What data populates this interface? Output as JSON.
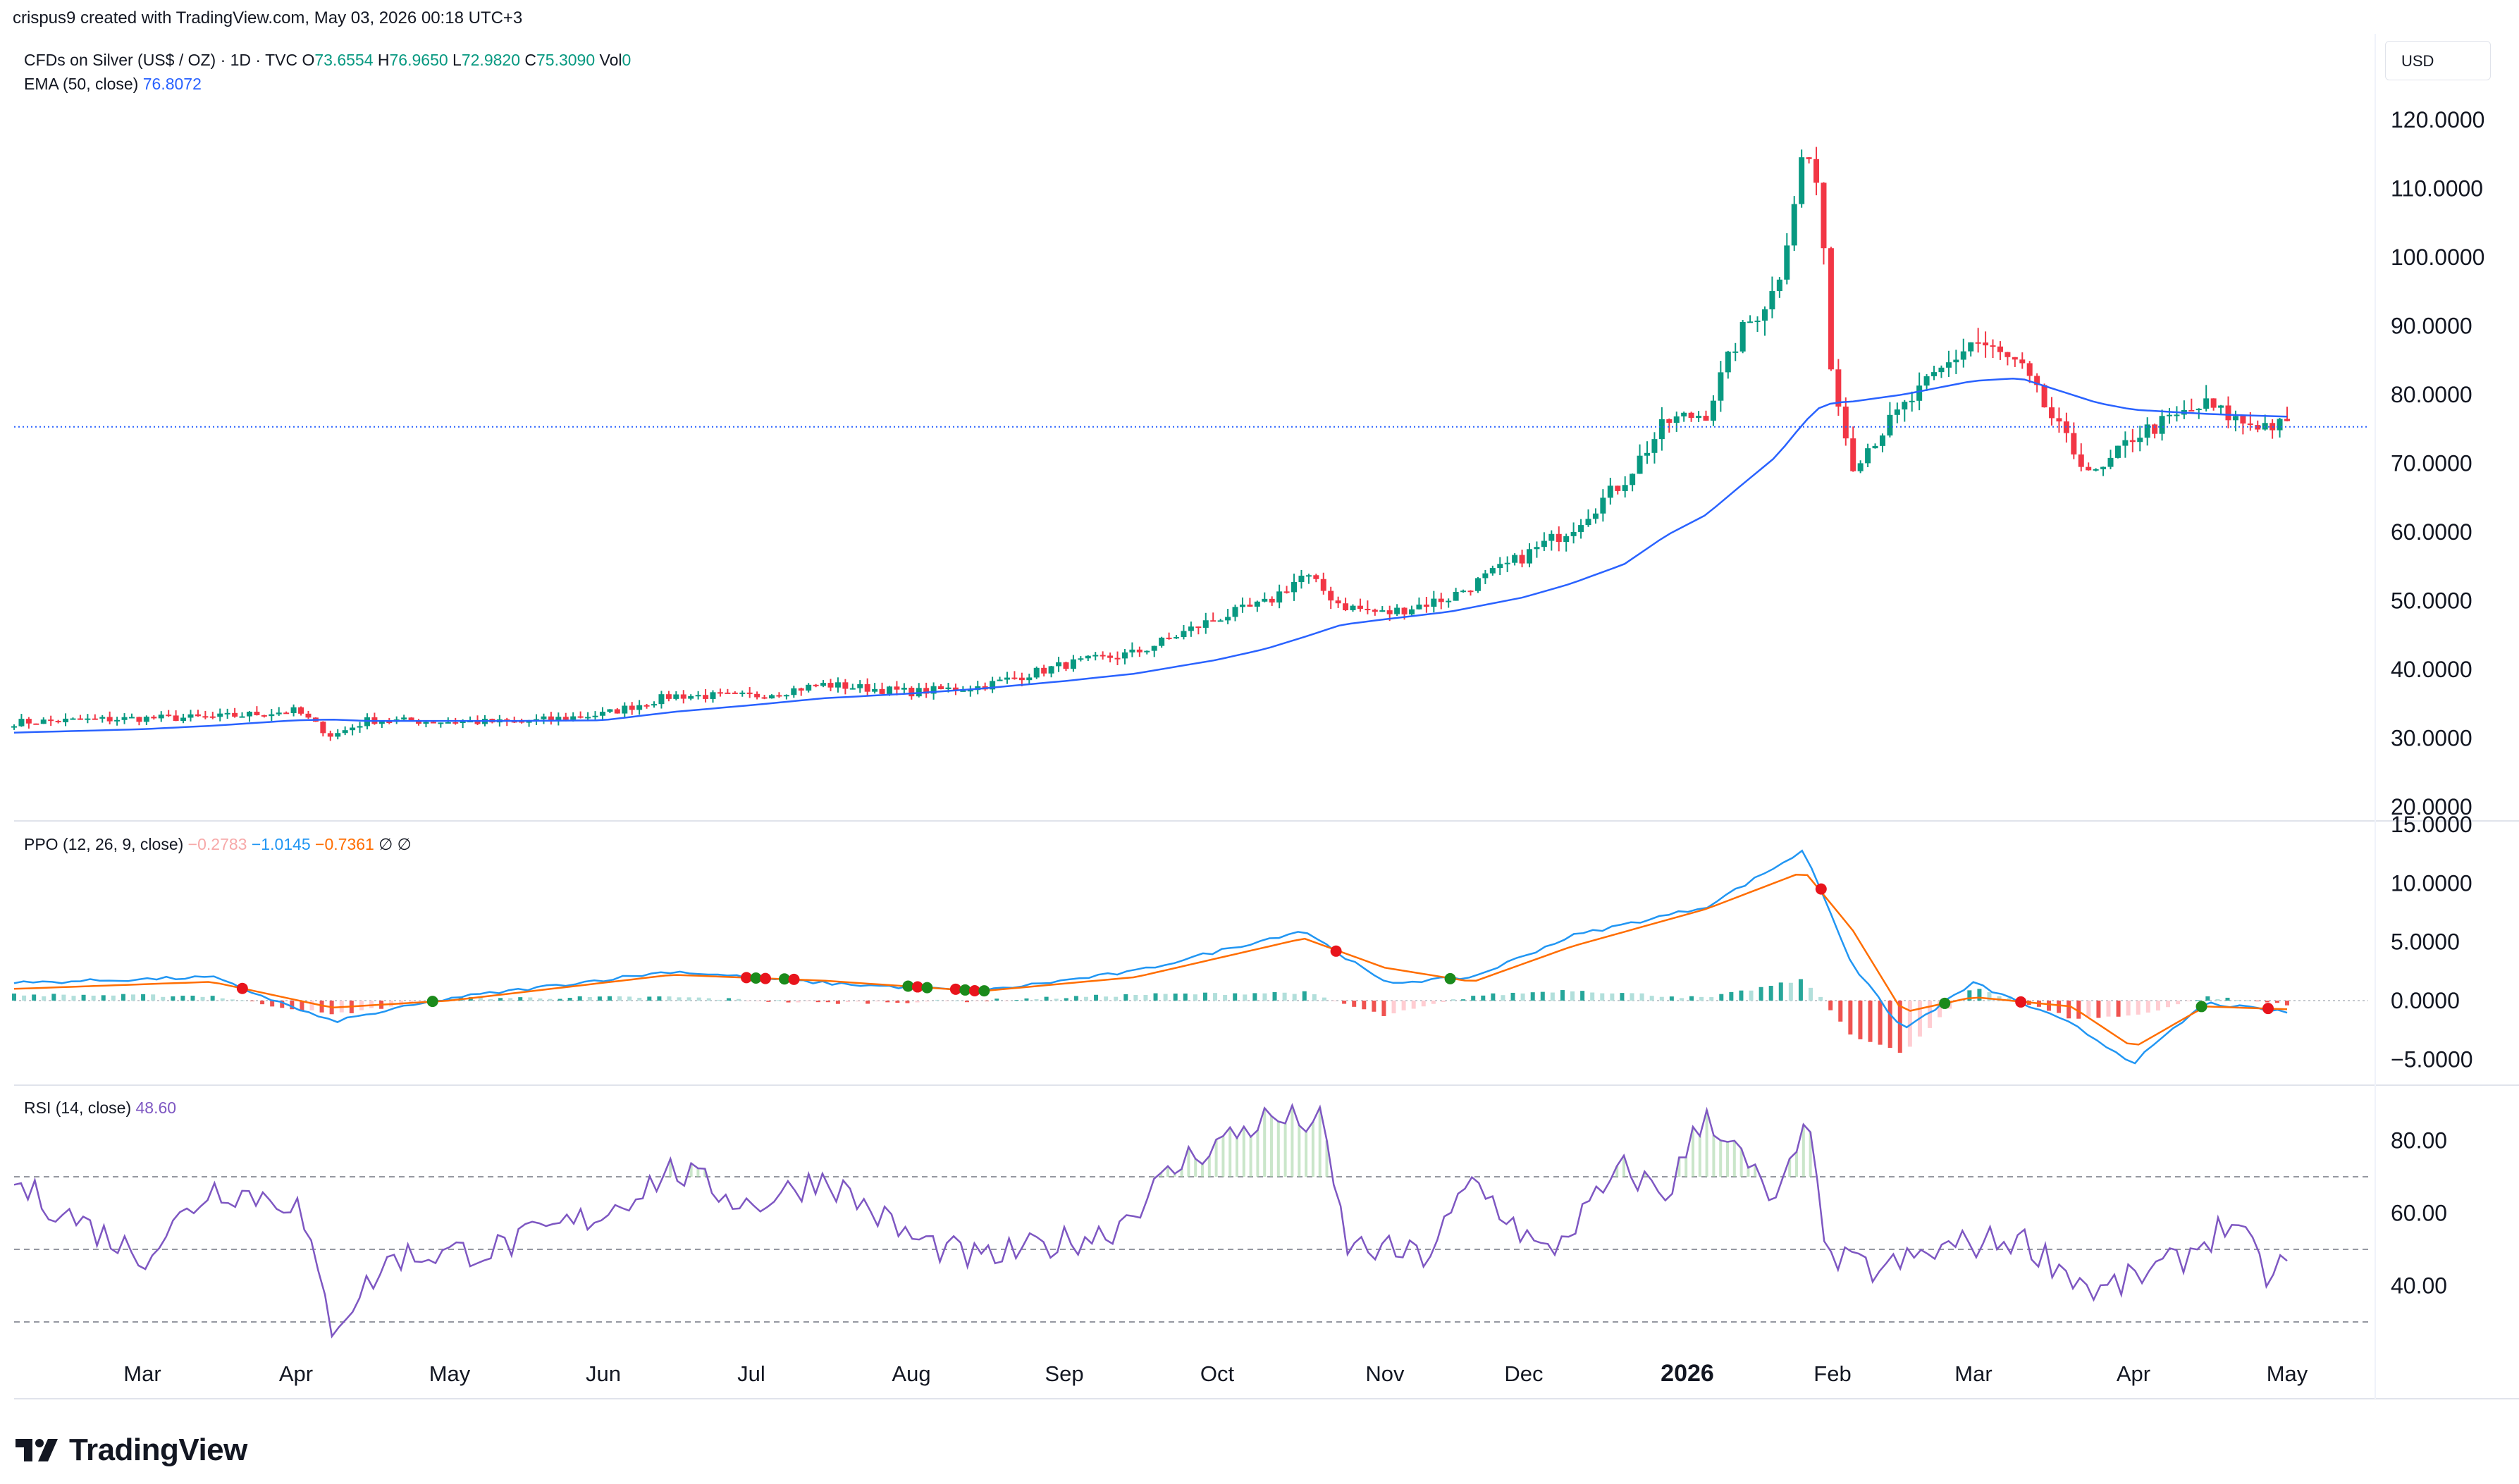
{
  "header": {
    "credit": "crispus9 created with TradingView.com, May 03, 2026 00:18 UTC+3"
  },
  "price_pane": {
    "symbol": "CFDs on Silver (US$ / OZ) · 1D · TVC",
    "o_label": "O",
    "o_value": "73.6554",
    "h_label": "H",
    "h_value": "76.9650",
    "l_label": "L",
    "l_value": "72.9820",
    "c_label": "C",
    "c_value": "75.3090",
    "vol_label": "Vol",
    "vol_value": "0",
    "ema_label": "EMA (50, close)",
    "ema_value": "76.8072",
    "currency": "USD",
    "y_ticks": [
      "120.0000",
      "110.0000",
      "100.0000",
      "90.0000",
      "80.0000",
      "70.0000",
      "60.0000",
      "50.0000",
      "40.0000",
      "30.0000",
      "20.0000"
    ]
  },
  "ppo_pane": {
    "label": "PPO (12, 26, 9, close)",
    "hist_value": "−0.2783",
    "ppo_value": "−1.0145",
    "signal_value": "−0.7361",
    "extra1": "∅",
    "extra2": "∅",
    "y_ticks": [
      "15.0000",
      "10.0000",
      "5.0000",
      "0.0000",
      "−5.0000"
    ]
  },
  "rsi_pane": {
    "label": "RSI (14, close)",
    "value": "48.60",
    "y_ticks": [
      "80.00",
      "60.00",
      "40.00"
    ]
  },
  "x_axis": {
    "labels": [
      "Mar",
      "Apr",
      "May",
      "Jun",
      "Jul",
      "Aug",
      "Sep",
      "Oct",
      "Nov",
      "Dec",
      "2026",
      "Feb",
      "Mar",
      "Apr",
      "May"
    ]
  },
  "footer": {
    "brand": "TradingView"
  },
  "colors": {
    "up": "#089981",
    "down": "#f23645",
    "ema": "#2962ff",
    "ppo_line": "#2196f3",
    "signal_line": "#ff6d00",
    "rsi_line": "#7e57c2",
    "hist_up": "#26a69a",
    "hist_down": "#ef5350",
    "hist_up_light": "#b2dfdb",
    "hist_down_light": "#ffcdd2"
  },
  "chart_data": [
    {
      "type": "line",
      "name_hint": "price",
      "title": "CFDs on Silver (US$ / OZ) · 1D · TVC",
      "x": [
        "2025-02-14",
        "2025-03-01",
        "2025-03-15",
        "2025-04-01",
        "2025-04-08",
        "2025-04-15",
        "2025-05-01",
        "2025-05-15",
        "2025-06-01",
        "2025-06-15",
        "2025-07-01",
        "2025-07-15",
        "2025-08-01",
        "2025-08-15",
        "2025-09-01",
        "2025-09-15",
        "2025-10-01",
        "2025-10-10",
        "2025-10-17",
        "2025-10-24",
        "2025-11-01",
        "2025-11-15",
        "2025-12-01",
        "2025-12-10",
        "2025-12-20",
        "2025-12-28",
        "2026-01-05",
        "2026-01-12",
        "2026-01-20",
        "2026-01-26",
        "2026-01-29",
        "2026-02-01",
        "2026-02-05",
        "2026-02-15",
        "2026-03-01",
        "2026-03-10",
        "2026-03-20",
        "2026-03-25",
        "2026-04-01",
        "2026-04-15",
        "2026-04-22",
        "2026-05-01"
      ],
      "close": [
        32.3,
        32.9,
        33.0,
        34.0,
        30.3,
        32.6,
        32.4,
        32.3,
        33.5,
        36.2,
        36.1,
        37.8,
        36.7,
        37.5,
        40.7,
        42.4,
        47.5,
        49.6,
        53.8,
        49.3,
        48.1,
        50.5,
        56.5,
        60.6,
        67.5,
        76.0,
        77.4,
        88.5,
        95.5,
        116.0,
        110.0,
        82.0,
        70.0,
        78.0,
        88.0,
        84.0,
        72.0,
        68.0,
        74.0,
        78.5,
        76.0,
        75.3
      ],
      "ema50": [
        30.8,
        31.3,
        31.8,
        32.6,
        32.7,
        32.5,
        32.5,
        32.5,
        32.6,
        33.8,
        34.8,
        35.8,
        36.5,
        37.2,
        38.3,
        39.4,
        41.4,
        43.0,
        44.7,
        46.5,
        47.3,
        48.4,
        50.5,
        52.5,
        55.3,
        59.5,
        62.5,
        66.5,
        71.0,
        76.0,
        78.0,
        78.8,
        79.0,
        80.0,
        82.0,
        82.4,
        80.0,
        78.8,
        77.8,
        77.2,
        77.0,
        76.8
      ],
      "ylim": [
        20,
        120
      ],
      "ylabel": "USD",
      "last_close": 75.309
    },
    {
      "type": "line",
      "title": "PPO (12, 26, 9, close)",
      "x": [
        "2025-02-14",
        "2025-03-15",
        "2025-04-08",
        "2025-05-01",
        "2025-06-15",
        "2025-07-15",
        "2025-08-15",
        "2025-09-15",
        "2025-10-17",
        "2025-11-01",
        "2025-11-20",
        "2025-12-10",
        "2026-01-05",
        "2026-01-26",
        "2026-02-05",
        "2026-02-15",
        "2026-03-01",
        "2026-03-20",
        "2026-04-01",
        "2026-04-15",
        "2026-05-01"
      ],
      "series": [
        {
          "name": "PPO",
          "values": [
            1.5,
            2.0,
            -1.8,
            0.2,
            2.5,
            1.5,
            0.8,
            2.5,
            6.0,
            1.5,
            2.0,
            5.5,
            8.0,
            12.8,
            3.0,
            -2.5,
            1.5,
            -2.0,
            -5.3,
            -0.2,
            -1.0145
          ]
        },
        {
          "name": "Signal",
          "values": [
            1.0,
            1.6,
            -0.6,
            0.0,
            2.2,
            1.7,
            0.8,
            2.0,
            5.3,
            2.8,
            1.6,
            4.6,
            7.8,
            11.0,
            6.0,
            -1.0,
            0.3,
            -0.5,
            -4.0,
            -0.5,
            -0.7361
          ]
        },
        {
          "name": "Histogram",
          "values": [
            0.5,
            0.4,
            -1.2,
            0.2,
            0.3,
            -0.2,
            0.0,
            0.5,
            0.7,
            -1.3,
            0.4,
            0.9,
            0.2,
            1.8,
            -3.0,
            -4.5,
            1.2,
            -1.5,
            -1.3,
            0.3,
            -0.2783
          ]
        }
      ],
      "ylim": [
        -7,
        15
      ]
    },
    {
      "type": "line",
      "title": "RSI (14, close)",
      "x": [
        "2025-02-14",
        "2025-03-01",
        "2025-03-15",
        "2025-04-01",
        "2025-04-08",
        "2025-04-20",
        "2025-05-10",
        "2025-06-01",
        "2025-06-15",
        "2025-07-01",
        "2025-07-15",
        "2025-08-01",
        "2025-08-15",
        "2025-09-10",
        "2025-09-25",
        "2025-10-10",
        "2025-10-20",
        "2025-10-25",
        "2025-11-10",
        "2025-11-20",
        "2025-12-05",
        "2025-12-20",
        "2025-12-28",
        "2026-01-05",
        "2026-01-20",
        "2026-01-28",
        "2026-01-30",
        "2026-02-10",
        "2026-02-25",
        "2026-03-10",
        "2026-03-25",
        "2026-04-10",
        "2026-04-20",
        "2026-04-28",
        "2026-05-01"
      ],
      "values": [
        68,
        48,
        67,
        63,
        29,
        48,
        50,
        60,
        72,
        62,
        70,
        53,
        47,
        55,
        75,
        86,
        85,
        51,
        48,
        69,
        48,
        72,
        65,
        88,
        62,
        88,
        48,
        44,
        51,
        53,
        38,
        47,
        58,
        41,
        48.6
      ],
      "ylim": [
        24,
        91
      ],
      "levels": [
        70,
        50,
        30
      ]
    }
  ]
}
